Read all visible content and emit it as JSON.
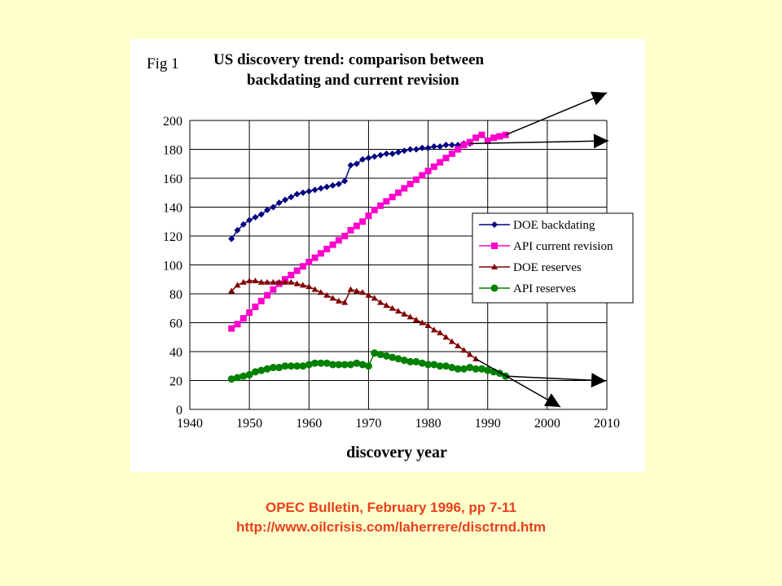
{
  "chart_data": {
    "type": "line",
    "fig_label": "Fig 1",
    "title": "US discovery trend: comparison between",
    "subtitle": "backdating and current revision",
    "xlabel": "discovery year",
    "ylabel": "",
    "xlim": [
      1940,
      2010
    ],
    "ylim": [
      0,
      200
    ],
    "xticks": [
      1940,
      1950,
      1960,
      1970,
      1980,
      1990,
      2000,
      2010
    ],
    "yticks": [
      0,
      20,
      40,
      60,
      80,
      100,
      120,
      140,
      160,
      180,
      200
    ],
    "grid": true,
    "legend_position": "right-middle",
    "series": [
      {
        "name": "DOE backdating",
        "color": "#000080",
        "marker": "diamond",
        "x": [
          1947,
          1948,
          1949,
          1950,
          1951,
          1952,
          1953,
          1954,
          1955,
          1956,
          1957,
          1958,
          1959,
          1960,
          1961,
          1962,
          1963,
          1964,
          1965,
          1966,
          1967,
          1968,
          1969,
          1970,
          1971,
          1972,
          1973,
          1974,
          1975,
          1976,
          1977,
          1978,
          1979,
          1980,
          1981,
          1982,
          1983,
          1984,
          1985,
          1986,
          1987
        ],
        "values": [
          118,
          124,
          128,
          131,
          133,
          135,
          138,
          140,
          143,
          145,
          147,
          149,
          150,
          151,
          152,
          153,
          154,
          155,
          156,
          158,
          169,
          170,
          173,
          174,
          175,
          176,
          177,
          177,
          178,
          179,
          180,
          180,
          181,
          181,
          182,
          182,
          183,
          183,
          183,
          184,
          184
        ]
      },
      {
        "name": "API current revision",
        "color": "#ff00cc",
        "marker": "square",
        "x": [
          1947,
          1948,
          1949,
          1950,
          1951,
          1952,
          1953,
          1954,
          1955,
          1956,
          1957,
          1958,
          1959,
          1960,
          1961,
          1962,
          1963,
          1964,
          1965,
          1966,
          1967,
          1968,
          1969,
          1970,
          1971,
          1972,
          1973,
          1974,
          1975,
          1976,
          1977,
          1978,
          1979,
          1980,
          1981,
          1982,
          1983,
          1984,
          1985,
          1986,
          1987,
          1988,
          1989,
          1990,
          1991,
          1992,
          1993
        ],
        "values": [
          56,
          59,
          63,
          67,
          71,
          75,
          79,
          83,
          87,
          90,
          93,
          96,
          99,
          102,
          105,
          108,
          111,
          114,
          117,
          120,
          124,
          127,
          130,
          134,
          138,
          141,
          144,
          147,
          150,
          153,
          156,
          159,
          162,
          165,
          168,
          171,
          174,
          177,
          180,
          183,
          185,
          188,
          190,
          186,
          188,
          189,
          190
        ]
      },
      {
        "name": "DOE reserves",
        "color": "#800000",
        "marker": "triangle",
        "x": [
          1947,
          1948,
          1949,
          1950,
          1951,
          1952,
          1953,
          1954,
          1955,
          1956,
          1957,
          1958,
          1959,
          1960,
          1961,
          1962,
          1963,
          1964,
          1965,
          1966,
          1967,
          1968,
          1969,
          1970,
          1971,
          1972,
          1973,
          1974,
          1975,
          1976,
          1977,
          1978,
          1979,
          1980,
          1981,
          1982,
          1983,
          1984,
          1985,
          1986,
          1987,
          1988
        ],
        "values": [
          82,
          86,
          88,
          89,
          89,
          88,
          88,
          88,
          88,
          88,
          88,
          87,
          86,
          85,
          83,
          81,
          79,
          77,
          75,
          74,
          83,
          82,
          81,
          79,
          77,
          74,
          72,
          70,
          68,
          66,
          64,
          62,
          60,
          58,
          55,
          53,
          50,
          47,
          44,
          41,
          38,
          35
        ]
      },
      {
        "name": "API reserves",
        "color": "#008000",
        "marker": "circle",
        "x": [
          1947,
          1948,
          1949,
          1950,
          1951,
          1952,
          1953,
          1954,
          1955,
          1956,
          1957,
          1958,
          1959,
          1960,
          1961,
          1962,
          1963,
          1964,
          1965,
          1966,
          1967,
          1968,
          1969,
          1970,
          1971,
          1972,
          1973,
          1974,
          1975,
          1976,
          1977,
          1978,
          1979,
          1980,
          1981,
          1982,
          1983,
          1984,
          1985,
          1986,
          1987,
          1988,
          1989,
          1990,
          1991,
          1992,
          1993
        ],
        "values": [
          21,
          22,
          23,
          24,
          26,
          27,
          28,
          29,
          29,
          30,
          30,
          30,
          30,
          31,
          32,
          32,
          32,
          31,
          31,
          31,
          31,
          32,
          31,
          30,
          39,
          38,
          37,
          36,
          35,
          34,
          33,
          33,
          32,
          31,
          31,
          30,
          30,
          29,
          28,
          28,
          29,
          28,
          28,
          27,
          26,
          25,
          23
        ]
      }
    ]
  },
  "caption": {
    "line1": "OPEC Bulletin, February 1996, pp 7-11",
    "line2": "http://www.oilcrisis.com/laherrere/disctrnd.htm"
  }
}
